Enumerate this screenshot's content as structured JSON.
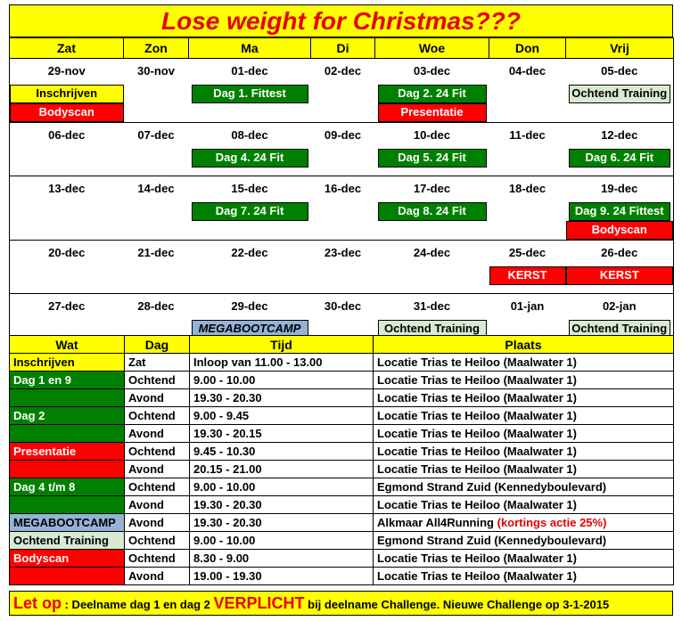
{
  "title": "Lose weight for Christmas???",
  "calendar": {
    "days": [
      "Zat",
      "Zon",
      "Ma",
      "Di",
      "Woe",
      "Don",
      "Vrij"
    ],
    "weeks": [
      {
        "dates": [
          "29-nov",
          "30-nov",
          "01-dec",
          "02-dec",
          "03-dec",
          "04-dec",
          "05-dec"
        ],
        "ev1": [
          "Inschrijven",
          "",
          "Dag 1. Fittest",
          "",
          "Dag 2. 24 Fit",
          "",
          "Ochtend Training"
        ],
        "ev2": [
          "Bodyscan",
          "",
          "",
          "",
          "Presentatie",
          "",
          ""
        ]
      },
      {
        "dates": [
          "06-dec",
          "07-dec",
          "08-dec",
          "09-dec",
          "10-dec",
          "11-dec",
          "12-dec"
        ],
        "ev1": [
          "",
          "",
          "Dag 4. 24 Fit",
          "",
          "Dag 5. 24 Fit",
          "",
          "Dag 6. 24 Fit"
        ],
        "ev2": [
          "",
          "",
          "",
          "",
          "",
          "",
          ""
        ]
      },
      {
        "dates": [
          "13-dec",
          "14-dec",
          "15-dec",
          "16-dec",
          "17-dec",
          "18-dec",
          "19-dec"
        ],
        "ev1": [
          "",
          "",
          "Dag 7. 24 Fit",
          "",
          "Dag 8. 24 Fit",
          "",
          "Dag 9. 24 Fittest"
        ],
        "ev2": [
          "",
          "",
          "",
          "",
          "",
          "",
          "Bodyscan"
        ]
      },
      {
        "dates": [
          "20-dec",
          "21-dec",
          "22-dec",
          "23-dec",
          "24-dec",
          "25-dec",
          "26-dec"
        ],
        "ev1": [
          "",
          "",
          "",
          "",
          "",
          "KERST",
          "KERST"
        ],
        "ev2": [
          "",
          "",
          "",
          "",
          "",
          "",
          ""
        ]
      },
      {
        "dates": [
          "27-dec",
          "28-dec",
          "29-dec",
          "30-dec",
          "31-dec",
          "01-jan",
          "02-jan"
        ],
        "ev1": [
          "",
          "",
          "MEGABOOTCAMP",
          "",
          "Ochtend Training",
          "",
          "Ochtend Training"
        ],
        "ev2": [
          "",
          "",
          "",
          "",
          "",
          "",
          ""
        ]
      }
    ]
  },
  "schedule": {
    "headers": [
      "Wat",
      "Dag",
      "Tijd",
      "Plaats"
    ],
    "rows": [
      [
        "Inschrijven",
        "Zat",
        "Inloop van 11.00  - 13.00",
        "Locatie Trias te Heiloo (Maalwater 1)"
      ],
      [
        "Dag 1 en 9",
        "Ochtend",
        "9.00 - 10.00",
        "Locatie Trias te Heiloo (Maalwater 1)"
      ],
      [
        "",
        "Avond",
        "19.30 - 20.30",
        "Locatie Trias te Heiloo (Maalwater 1)"
      ],
      [
        "Dag 2",
        "Ochtend",
        "9.00 - 9.45",
        "Locatie Trias te Heiloo (Maalwater 1)"
      ],
      [
        "",
        "Avond",
        "19.30 - 20.15",
        "Locatie Trias te Heiloo (Maalwater 1)"
      ],
      [
        "Presentatie",
        "Ochtend",
        "9.45 - 10.30",
        "Locatie Trias te Heiloo (Maalwater 1)"
      ],
      [
        "",
        "Avond",
        "20.15 - 21.00",
        "Locatie Trias te Heiloo (Maalwater 1)"
      ],
      [
        "Dag 4 t/m 8",
        "Ochtend",
        "9.00 - 10.00",
        "Egmond Strand Zuid (Kennedyboulevard)"
      ],
      [
        "",
        "Avond",
        "19.30 - 20.30",
        "Locatie Trias te Heiloo (Maalwater 1)"
      ],
      [
        "MEGABOOTCAMP",
        "Avond",
        "19.30 - 20.30",
        "Alkmaar All4Running "
      ],
      [
        "Ochtend Training",
        "Ochtend",
        "9.00 - 10.00",
        "Egmond Strand Zuid (Kennedyboulevard)"
      ],
      [
        "Bodyscan",
        "Ochtend",
        "8.30 - 9.00",
        "Locatie Trias te Heiloo (Maalwater 1)"
      ],
      [
        "",
        "Avond",
        "19.00 - 19.30",
        "Locatie Trias te Heiloo (Maalwater 1)"
      ]
    ],
    "discount_note": "(kortings actie 25%)"
  },
  "footer": {
    "let_op": "Let op",
    "part1": " : Deelname dag 1 en dag 2 ",
    "verplicht": "VERPLICHT",
    "part2": " bij deelname Challenge. Nieuwe Challenge op 3-1-2015"
  },
  "colors": {
    "header_yellow": "#ffff00",
    "title_red": "#e60000",
    "green": "#008000",
    "red": "#ff0000",
    "pale_green": "#d9ead3",
    "blue": "#95b3d7"
  }
}
